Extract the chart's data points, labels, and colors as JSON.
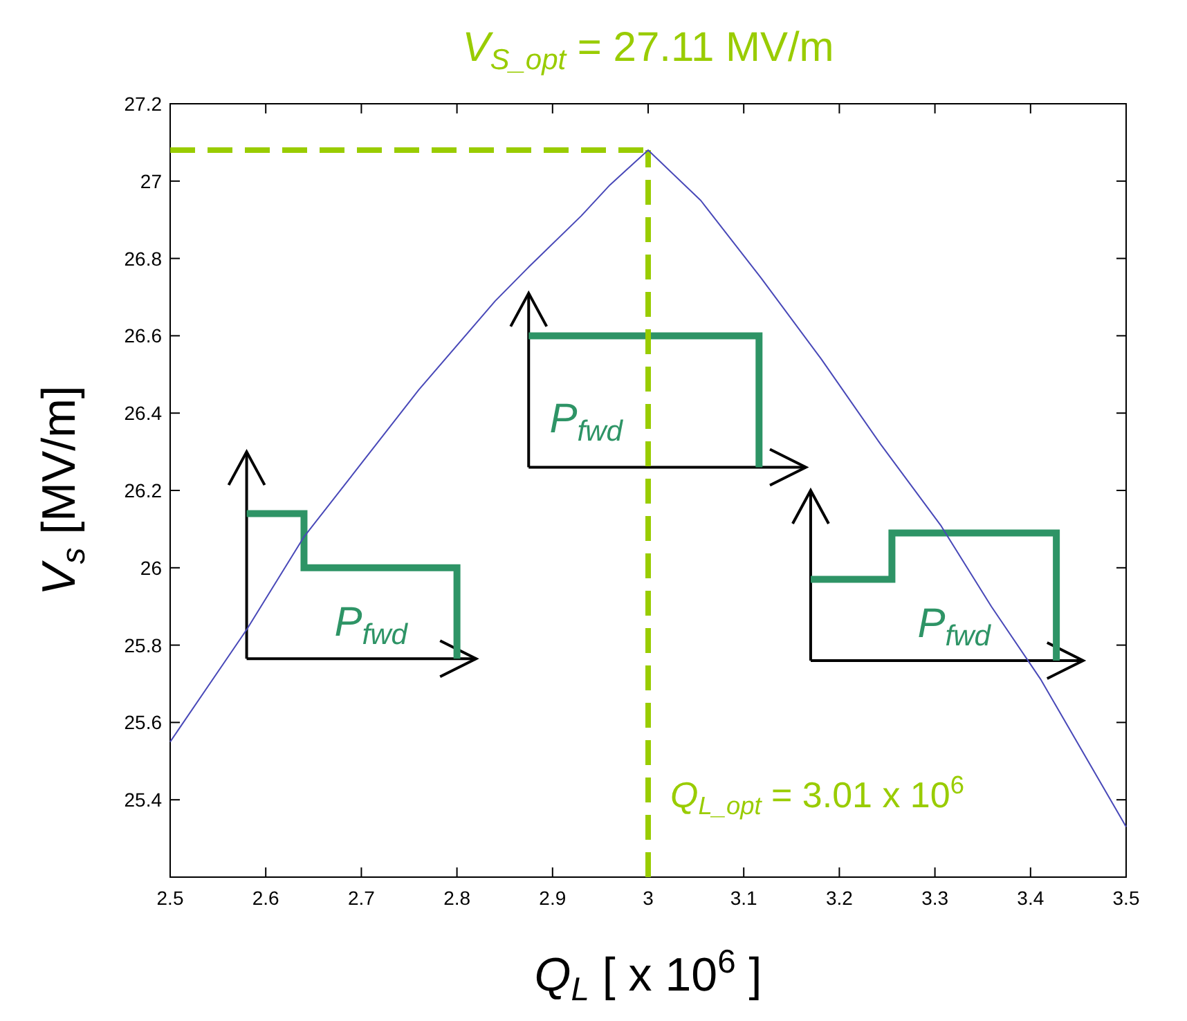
{
  "chart_data": {
    "type": "line",
    "title": "V$_{S_opt}$ = 27.11 MV/m",
    "xlabel": "Q$_{L}$   [ x 10$^{6}$ ]",
    "ylabel": "V$_{s}$  [MV/m]",
    "x": [
      2.5,
      2.58,
      2.64,
      2.7,
      2.76,
      2.84,
      2.876,
      2.93,
      2.96,
      3.0,
      3.055,
      3.118,
      3.181,
      3.243,
      3.306,
      3.359,
      3.411,
      3.5
    ],
    "series": [
      {
        "color": "#4848b8",
        "values": [
          25.55,
          25.84,
          26.08,
          26.27,
          26.46,
          26.69,
          26.78,
          26.91,
          26.99,
          27.08,
          26.95,
          26.75,
          26.54,
          26.32,
          26.11,
          25.9,
          25.71,
          25.33
        ]
      }
    ],
    "xlim": [
      2.5,
      3.5
    ],
    "xticks": [
      2.5,
      2.6,
      2.7,
      2.8,
      2.9,
      3,
      3.1,
      3.2,
      3.3,
      3.4,
      3.5
    ],
    "ylim": [
      25.2,
      27.2
    ],
    "yticks": [
      25.4,
      25.6,
      25.8,
      26,
      26.2,
      26.4,
      26.6,
      26.8,
      27,
      27.2
    ],
    "grid": false,
    "marker": "none",
    "line_style": "solid",
    "ref_lines": [
      {
        "axis": "x",
        "value": 3.0,
        "color": "#99cc00",
        "line_style": "dashed"
      },
      {
        "axis": "y",
        "value": 27.08,
        "color": "#99cc00",
        "line_style": "dashed"
      }
    ],
    "annotations": [
      {
        "text": "Q$_{L_opt}$ = 3.01 x 10$^{6}$",
        "x": 3.0,
        "y": 25.38
      },
      "P$_{fwd}$",
      "P$_{fwd}$",
      "P$_{fwd}$"
    ]
  }
}
